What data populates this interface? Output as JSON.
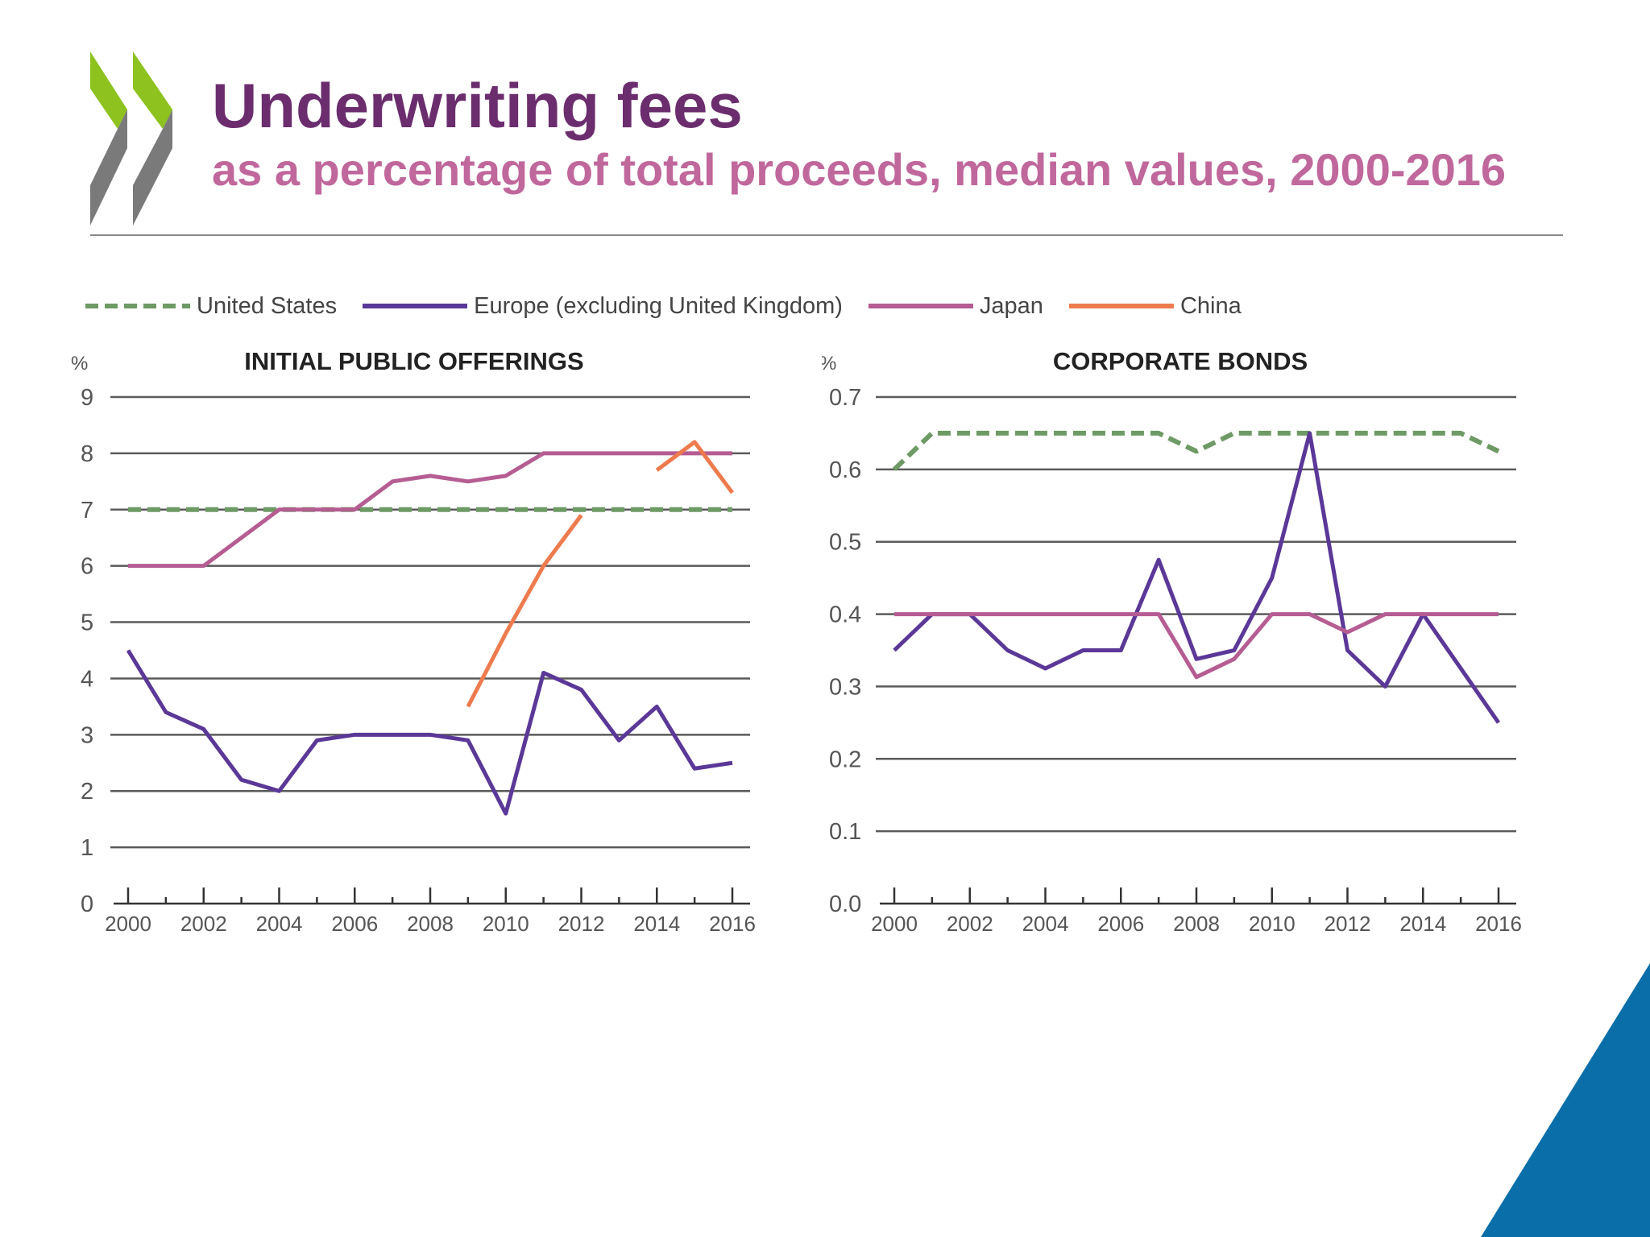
{
  "slide": {
    "title": "Underwriting fees",
    "subtitle": "as a percentage of total proceeds, median values, 2000-2016"
  },
  "colors": {
    "title": "#6b2d6e",
    "subtitle": "#c0679c",
    "logo_green": "#8dc21f",
    "logo_grey": "#7a7a7a",
    "corner_blue": "#0a6ea8",
    "united_states": "#6e9a65",
    "europe": "#5b3898",
    "japan": "#b55d92",
    "china": "#ee7b4e"
  },
  "legend": [
    {
      "label": "United States",
      "color": "#6e9a65",
      "dash": true
    },
    {
      "label": "Europe (excluding United Kingdom)",
      "color": "#5b3898",
      "dash": false
    },
    {
      "label": "Japan",
      "color": "#b55d92",
      "dash": false
    },
    {
      "label": "China",
      "color": "#ee7b4e",
      "dash": false
    }
  ],
  "chart_data": [
    {
      "type": "line",
      "title": "INITIAL PUBLIC OFFERINGS",
      "ylabel": "%",
      "xlabel": "",
      "ylim": [
        0,
        9
      ],
      "yticks": [
        "0",
        "1",
        "2",
        "3",
        "4",
        "5",
        "6",
        "7",
        "8",
        "9"
      ],
      "xticks": [
        "2000",
        "2002",
        "2004",
        "2006",
        "2008",
        "2010",
        "2012",
        "2014",
        "2016"
      ],
      "grid": true,
      "x": [
        2000,
        2001,
        2002,
        2003,
        2004,
        2005,
        2006,
        2007,
        2008,
        2009,
        2010,
        2011,
        2012,
        2013,
        2014,
        2015,
        2016
      ],
      "series": [
        {
          "name": "United States",
          "dash": true,
          "color": "#6e9a65",
          "values": [
            7,
            7,
            7,
            7,
            7,
            7,
            7,
            7,
            7,
            7,
            7,
            7,
            7,
            7,
            7,
            7,
            7
          ]
        },
        {
          "name": "Europe (excluding United Kingdom)",
          "dash": false,
          "color": "#5b3898",
          "values": [
            4.5,
            3.4,
            3.1,
            2.2,
            2.0,
            2.9,
            3.0,
            3.0,
            3.0,
            2.9,
            1.6,
            4.1,
            3.8,
            2.9,
            3.5,
            2.4,
            2.5
          ]
        },
        {
          "name": "Japan",
          "dash": false,
          "color": "#b55d92",
          "values": [
            6,
            6,
            6,
            6.5,
            7,
            7,
            7,
            7.5,
            7.6,
            7.5,
            7.6,
            8,
            8,
            8,
            8,
            8,
            8
          ]
        },
        {
          "name": "China",
          "dash": false,
          "color": "#ee7b4e",
          "values": [
            null,
            null,
            null,
            null,
            null,
            null,
            null,
            null,
            null,
            3.5,
            4.8,
            6.0,
            6.9,
            null,
            7.7,
            8.2,
            7.3
          ]
        }
      ]
    },
    {
      "type": "line",
      "title": "CORPORATE BONDS",
      "ylabel": "%",
      "xlabel": "",
      "ylim": [
        0,
        0.7
      ],
      "yticks": [
        "0.0",
        "0.1",
        "0.2",
        "0.3",
        "0.4",
        "0.5",
        "0.6",
        "0.7"
      ],
      "xticks": [
        "2000",
        "2002",
        "2004",
        "2006",
        "2008",
        "2010",
        "2012",
        "2014",
        "2016"
      ],
      "grid": true,
      "x": [
        2000,
        2001,
        2002,
        2003,
        2004,
        2005,
        2006,
        2007,
        2008,
        2009,
        2010,
        2011,
        2012,
        2013,
        2014,
        2015,
        2016
      ],
      "series": [
        {
          "name": "United States",
          "dash": true,
          "color": "#6e9a65",
          "values": [
            0.6,
            0.65,
            0.65,
            0.65,
            0.65,
            0.65,
            0.65,
            0.65,
            0.625,
            0.65,
            0.65,
            0.65,
            0.65,
            0.65,
            0.65,
            0.65,
            0.625
          ]
        },
        {
          "name": "Europe (excluding United Kingdom)",
          "dash": false,
          "color": "#5b3898",
          "values": [
            0.35,
            0.4,
            0.4,
            0.35,
            0.325,
            0.35,
            0.35,
            0.475,
            0.338,
            0.35,
            0.45,
            0.65,
            0.35,
            0.3,
            0.4,
            0.325,
            0.25
          ]
        },
        {
          "name": "Japan",
          "dash": false,
          "color": "#b55d92",
          "values": [
            0.4,
            0.4,
            0.4,
            0.4,
            0.4,
            0.4,
            0.4,
            0.4,
            0.313,
            0.338,
            0.4,
            0.4,
            0.375,
            0.4,
            0.4,
            0.4,
            0.4
          ]
        }
      ]
    }
  ]
}
